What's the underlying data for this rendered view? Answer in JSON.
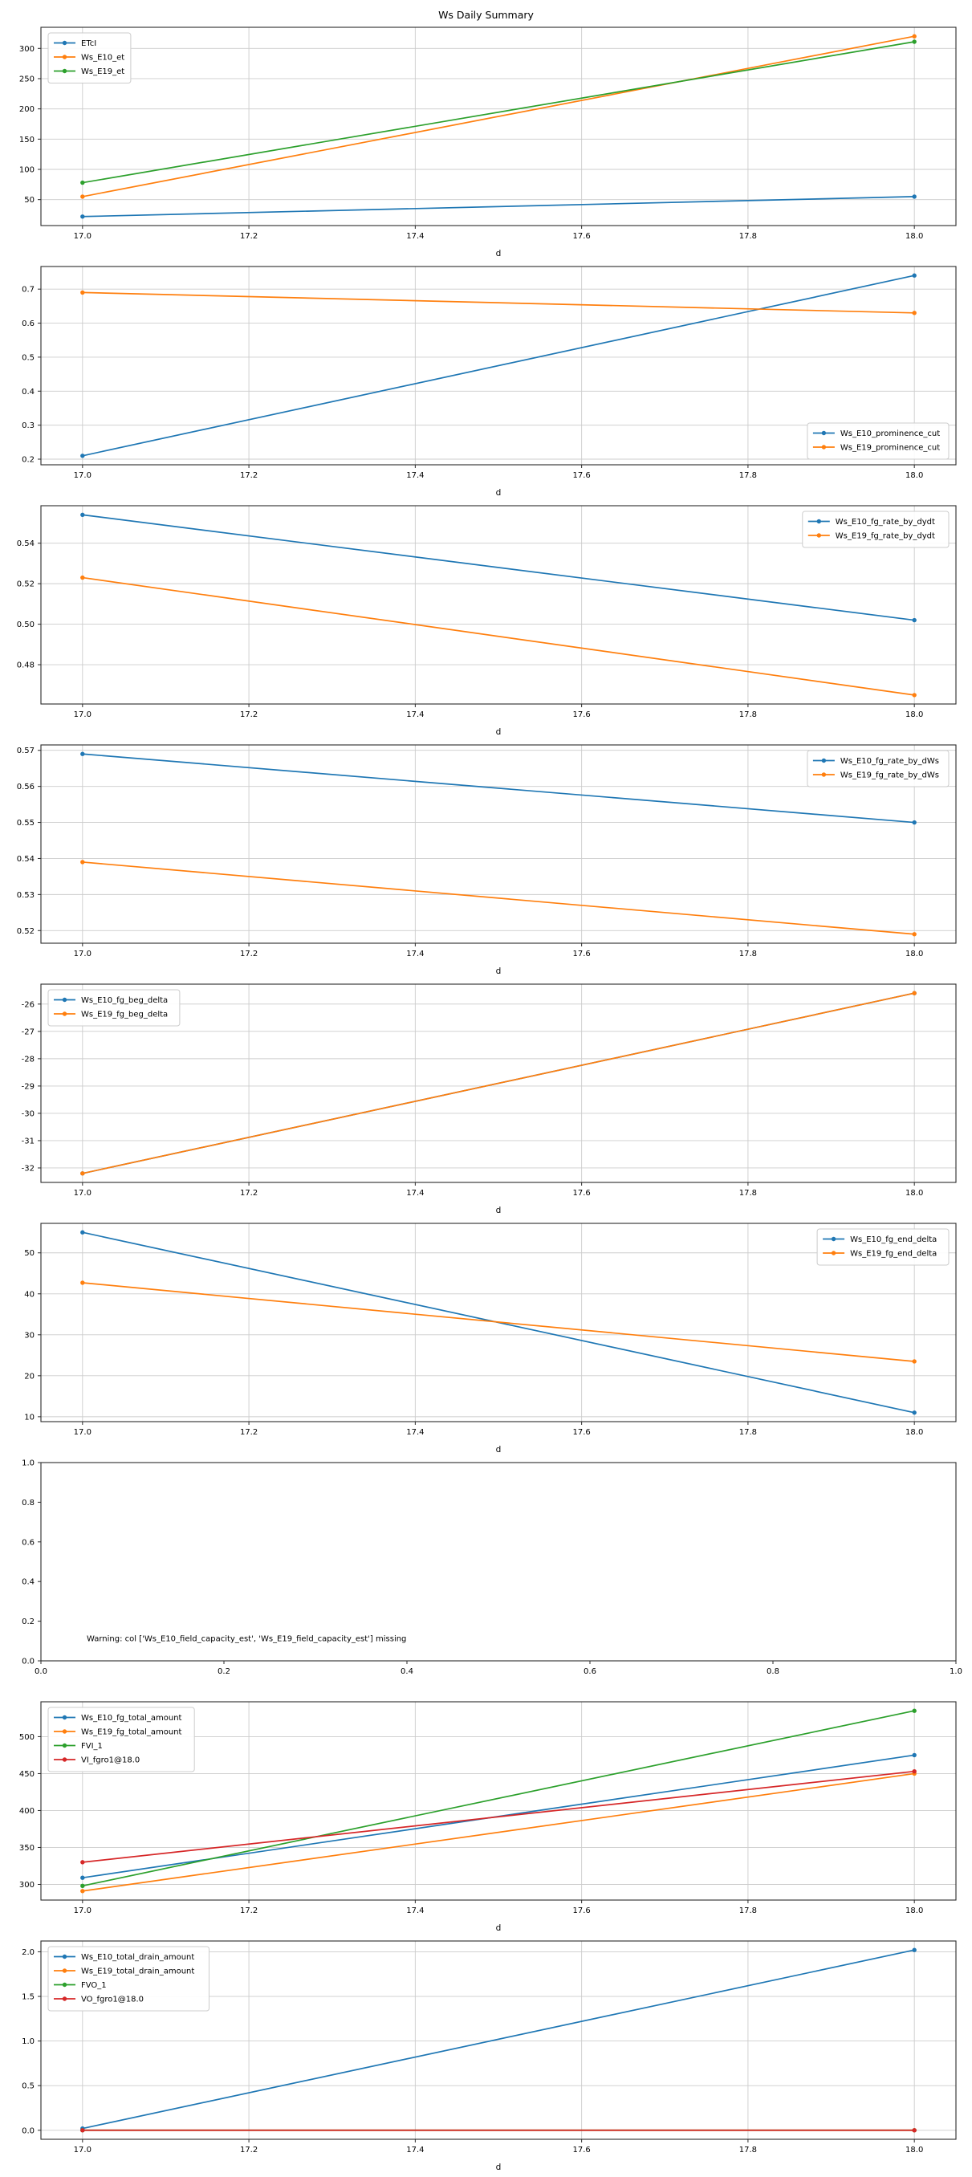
{
  "figure_title": "Ws Daily Summary",
  "xlabel": "d",
  "colors": {
    "blue": "#1f77b4",
    "orange": "#ff7f0e",
    "green": "#2ca02c",
    "red": "#d62728",
    "grid": "#cccccc",
    "spine": "#2b2b2b"
  },
  "chart_data": [
    {
      "type": "line",
      "x": [
        17.0,
        18.0
      ],
      "xlim": [
        16.95,
        18.05
      ],
      "ylim": [
        7.1,
        334.9
      ],
      "xticks": [
        17.0,
        17.2,
        17.4,
        17.6,
        17.8,
        18.0
      ],
      "yticks": [
        50,
        100,
        150,
        200,
        250,
        300
      ],
      "xtick_decimals": 1,
      "ytick_decimals": 0,
      "grid": true,
      "xlabel": "d",
      "legend_pos": "upper-left",
      "series": [
        {
          "name": "ETcI",
          "color": "#1f77b4",
          "values": [
            22,
            55
          ]
        },
        {
          "name": "Ws_E10_et",
          "color": "#ff7f0e",
          "values": [
            55,
            320
          ]
        },
        {
          "name": "Ws_E19_et",
          "color": "#2ca02c",
          "values": [
            78,
            311
          ]
        }
      ]
    },
    {
      "type": "line",
      "x": [
        17.0,
        18.0
      ],
      "xlim": [
        16.95,
        18.05
      ],
      "ylim": [
        0.1835,
        0.7665
      ],
      "xticks": [
        17.0,
        17.2,
        17.4,
        17.6,
        17.8,
        18.0
      ],
      "yticks": [
        0.2,
        0.3,
        0.4,
        0.5,
        0.6,
        0.7
      ],
      "xtick_decimals": 1,
      "ytick_decimals": 1,
      "grid": true,
      "xlabel": "d",
      "legend_pos": "lower-right",
      "series": [
        {
          "name": "Ws_E10_prominence_cut",
          "color": "#1f77b4",
          "values": [
            0.21,
            0.74
          ]
        },
        {
          "name": "Ws_E19_prominence_cut",
          "color": "#ff7f0e",
          "values": [
            0.69,
            0.63
          ]
        }
      ]
    },
    {
      "type": "line",
      "x": [
        17.0,
        18.0
      ],
      "xlim": [
        16.95,
        18.05
      ],
      "ylim": [
        0.4606,
        0.5585
      ],
      "xticks": [
        17.0,
        17.2,
        17.4,
        17.6,
        17.8,
        18.0
      ],
      "yticks": [
        0.48,
        0.5,
        0.52,
        0.54
      ],
      "xtick_decimals": 1,
      "ytick_decimals": 2,
      "grid": true,
      "xlabel": "d",
      "legend_pos": "upper-right",
      "series": [
        {
          "name": "Ws_E10_fg_rate_by_dydt",
          "color": "#1f77b4",
          "values": [
            0.554,
            0.502
          ]
        },
        {
          "name": "Ws_E19_fg_rate_by_dydt",
          "color": "#ff7f0e",
          "values": [
            0.523,
            0.465
          ]
        }
      ]
    },
    {
      "type": "line",
      "x": [
        17.0,
        18.0
      ],
      "xlim": [
        16.95,
        18.05
      ],
      "ylim": [
        0.5165,
        0.5715
      ],
      "xticks": [
        17.0,
        17.2,
        17.4,
        17.6,
        17.8,
        18.0
      ],
      "yticks": [
        0.52,
        0.53,
        0.54,
        0.55,
        0.56,
        0.57
      ],
      "xtick_decimals": 1,
      "ytick_decimals": 2,
      "grid": true,
      "xlabel": "d",
      "legend_pos": "upper-right",
      "series": [
        {
          "name": "Ws_E10_fg_rate_by_dWs",
          "color": "#1f77b4",
          "values": [
            0.569,
            0.55
          ]
        },
        {
          "name": "Ws_E19_fg_rate_by_dWs",
          "color": "#ff7f0e",
          "values": [
            0.539,
            0.519
          ]
        }
      ]
    },
    {
      "type": "line",
      "x": [
        17.0,
        18.0
      ],
      "xlim": [
        16.95,
        18.05
      ],
      "ylim": [
        -32.53,
        -25.27
      ],
      "xticks": [
        17.0,
        17.2,
        17.4,
        17.6,
        17.8,
        18.0
      ],
      "yticks": [
        -32,
        -31,
        -30,
        -29,
        -28,
        -27,
        -26
      ],
      "xtick_decimals": 1,
      "ytick_decimals": 0,
      "grid": true,
      "xlabel": "d",
      "legend_pos": "upper-left",
      "series": [
        {
          "name": "Ws_E10_fg_beg_delta",
          "color": "#1f77b4",
          "values": [
            -32.2,
            -25.6
          ]
        },
        {
          "name": "Ws_E19_fg_beg_delta",
          "color": "#ff7f0e",
          "values": [
            -32.2,
            -25.6
          ]
        }
      ]
    },
    {
      "type": "line",
      "x": [
        17.0,
        18.0
      ],
      "xlim": [
        16.95,
        18.05
      ],
      "ylim": [
        8.8,
        57.2
      ],
      "xticks": [
        17.0,
        17.2,
        17.4,
        17.6,
        17.8,
        18.0
      ],
      "yticks": [
        10,
        20,
        30,
        40,
        50
      ],
      "xtick_decimals": 1,
      "ytick_decimals": 0,
      "grid": true,
      "xlabel": "d",
      "legend_pos": "upper-right",
      "series": [
        {
          "name": "Ws_E10_fg_end_delta",
          "color": "#1f77b4",
          "values": [
            55,
            11
          ]
        },
        {
          "name": "Ws_E19_fg_end_delta",
          "color": "#ff7f0e",
          "values": [
            42.7,
            23.5
          ]
        }
      ]
    },
    {
      "type": "line",
      "x": [],
      "xlim": [
        0.0,
        1.0
      ],
      "ylim": [
        0.0,
        1.0
      ],
      "xticks": [
        0.0,
        0.2,
        0.4,
        0.6,
        0.8,
        1.0
      ],
      "yticks": [
        0.0,
        0.2,
        0.4,
        0.6,
        0.8,
        1.0
      ],
      "xtick_decimals": 1,
      "ytick_decimals": 1,
      "grid": false,
      "xlabel": "",
      "legend_pos": "none",
      "series": [],
      "annotation": {
        "text": "Warning: col ['Ws_E10_field_capacity_est', 'Ws_E19_field_capacity_est'] missing",
        "x": 0.05,
        "y": 0.1
      }
    },
    {
      "type": "line",
      "x": [
        17.0,
        18.0
      ],
      "xlim": [
        16.95,
        18.05
      ],
      "ylim": [
        278.8,
        547.2
      ],
      "xticks": [
        17.0,
        17.2,
        17.4,
        17.6,
        17.8,
        18.0
      ],
      "yticks": [
        300,
        350,
        400,
        450,
        500
      ],
      "xtick_decimals": 1,
      "ytick_decimals": 0,
      "grid": true,
      "xlabel": "d",
      "legend_pos": "upper-left",
      "series": [
        {
          "name": "Ws_E10_fg_total_amount",
          "color": "#1f77b4",
          "values": [
            309,
            475
          ]
        },
        {
          "name": "Ws_E19_fg_total_amount",
          "color": "#ff7f0e",
          "values": [
            291,
            450
          ]
        },
        {
          "name": "FVI_1",
          "color": "#2ca02c",
          "values": [
            298,
            535
          ]
        },
        {
          "name": "VI_fgro1@18.0",
          "color": "#d62728",
          "values": [
            330,
            453
          ]
        }
      ]
    },
    {
      "type": "line",
      "x": [
        17.0,
        18.0
      ],
      "xlim": [
        16.95,
        18.05
      ],
      "ylim": [
        -0.101,
        2.121
      ],
      "xticks": [
        17.0,
        17.2,
        17.4,
        17.6,
        17.8,
        18.0
      ],
      "yticks": [
        0.0,
        0.5,
        1.0,
        1.5,
        2.0
      ],
      "xtick_decimals": 1,
      "ytick_decimals": 1,
      "grid": true,
      "xlabel": "d",
      "legend_pos": "upper-left",
      "series": [
        {
          "name": "Ws_E10_total_drain_amount",
          "color": "#1f77b4",
          "values": [
            0.02,
            2.02
          ]
        },
        {
          "name": "Ws_E19_total_drain_amount",
          "color": "#ff7f0e",
          "values": [
            0.0,
            0.0
          ]
        },
        {
          "name": "FVO_1",
          "color": "#2ca02c",
          "values": [
            0.0,
            0.0
          ]
        },
        {
          "name": "VO_fgro1@18.0",
          "color": "#d62728",
          "values": [
            0.0,
            0.0
          ]
        }
      ]
    }
  ]
}
